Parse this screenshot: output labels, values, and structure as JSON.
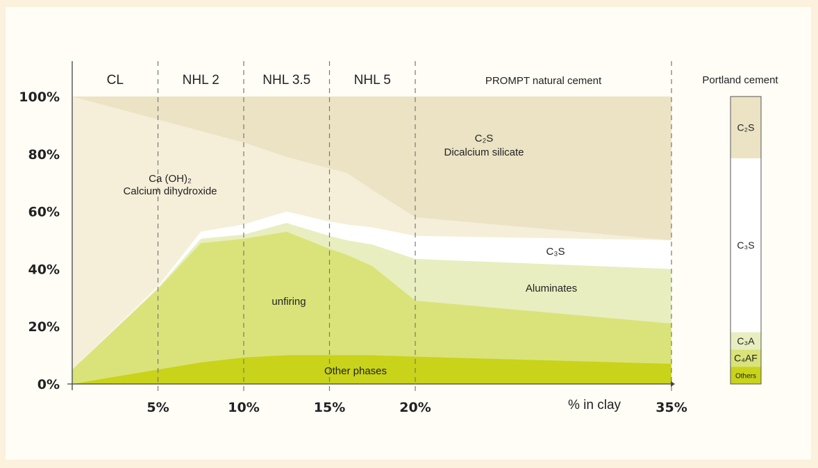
{
  "chart_data": {
    "type": "area",
    "title": "",
    "xlabel": "% in clay",
    "ylabel": "",
    "x_ticks": [
      "5%",
      "10%",
      "15%",
      "20%",
      "35%"
    ],
    "y_ticks": [
      "0%",
      "20%",
      "40%",
      "60%",
      "80%",
      "100%"
    ],
    "ylim": [
      0,
      100
    ],
    "x_axis_note": "x axis is piecewise: 0–20% linear, 20% to 35% compressed",
    "zones": [
      {
        "label": "CL",
        "from": 0,
        "to": 5
      },
      {
        "label": "NHL 2",
        "from": 5,
        "to": 10
      },
      {
        "label": "NHL 3.5",
        "from": 10,
        "to": 15
      },
      {
        "label": "NHL 5",
        "from": 15,
        "to": 20
      },
      {
        "label": "PROMPT natural cement",
        "from": 20,
        "to": 35
      }
    ],
    "x": [
      0,
      5,
      7.5,
      10,
      12.5,
      15,
      16,
      17.5,
      20,
      35
    ],
    "series": [
      {
        "name": "Other phases",
        "color": "#c8d31a",
        "values": [
          0,
          5,
          7.5,
          9.2,
          10,
          10,
          10,
          10,
          9.5,
          7
        ]
      },
      {
        "name": "unfiring",
        "color": "#dae37a",
        "values": [
          5,
          33,
          49,
          50.5,
          53,
          47,
          45,
          41,
          29,
          21
        ]
      },
      {
        "name": "Aluminates",
        "color": "#e9eec0",
        "values": [
          5,
          33.5,
          50.5,
          52,
          56,
          51.5,
          50,
          48.5,
          43.5,
          40
        ]
      },
      {
        "name": "C₃S",
        "color": "#ffffff",
        "values": [
          5,
          34,
          53,
          55.5,
          60,
          56.5,
          55.5,
          54.5,
          51.5,
          50
        ]
      },
      {
        "name": "Ca (OH)₂ Calcium dihydroxide",
        "color": "#f5efd9",
        "values": [
          100,
          92,
          88,
          84,
          79,
          75,
          73.5,
          67.5,
          58,
          50
        ]
      },
      {
        "name": "C₂S Dicalcium silicate",
        "color": "#ebe3c4",
        "values": [
          100,
          100,
          100,
          100,
          100,
          100,
          100,
          100,
          100,
          100
        ]
      }
    ],
    "area_labels": {
      "cah": [
        "Ca (OH)₂",
        "Calcium dihydroxide"
      ],
      "c2s": [
        "C₂S",
        "Dicalcium silicate"
      ],
      "c3s": "C₃S",
      "aluminates": "Aluminates",
      "unfiring": "unfiring",
      "other": "Other phases"
    },
    "portland": {
      "title": "Portland cement",
      "segments": [
        {
          "label": "Others",
          "from": 0,
          "to": 6,
          "color": "#c8d31a"
        },
        {
          "label": "C₄AF",
          "from": 6,
          "to": 12,
          "color": "#dae37a"
        },
        {
          "label": "C₃A",
          "from": 12,
          "to": 18,
          "color": "#e9eec0"
        },
        {
          "label": "C₃S",
          "from": 18,
          "to": 78.5,
          "color": "#ffffff"
        },
        {
          "label": "C₂S",
          "from": 78.5,
          "to": 100,
          "color": "#ebe3c4"
        }
      ]
    }
  }
}
